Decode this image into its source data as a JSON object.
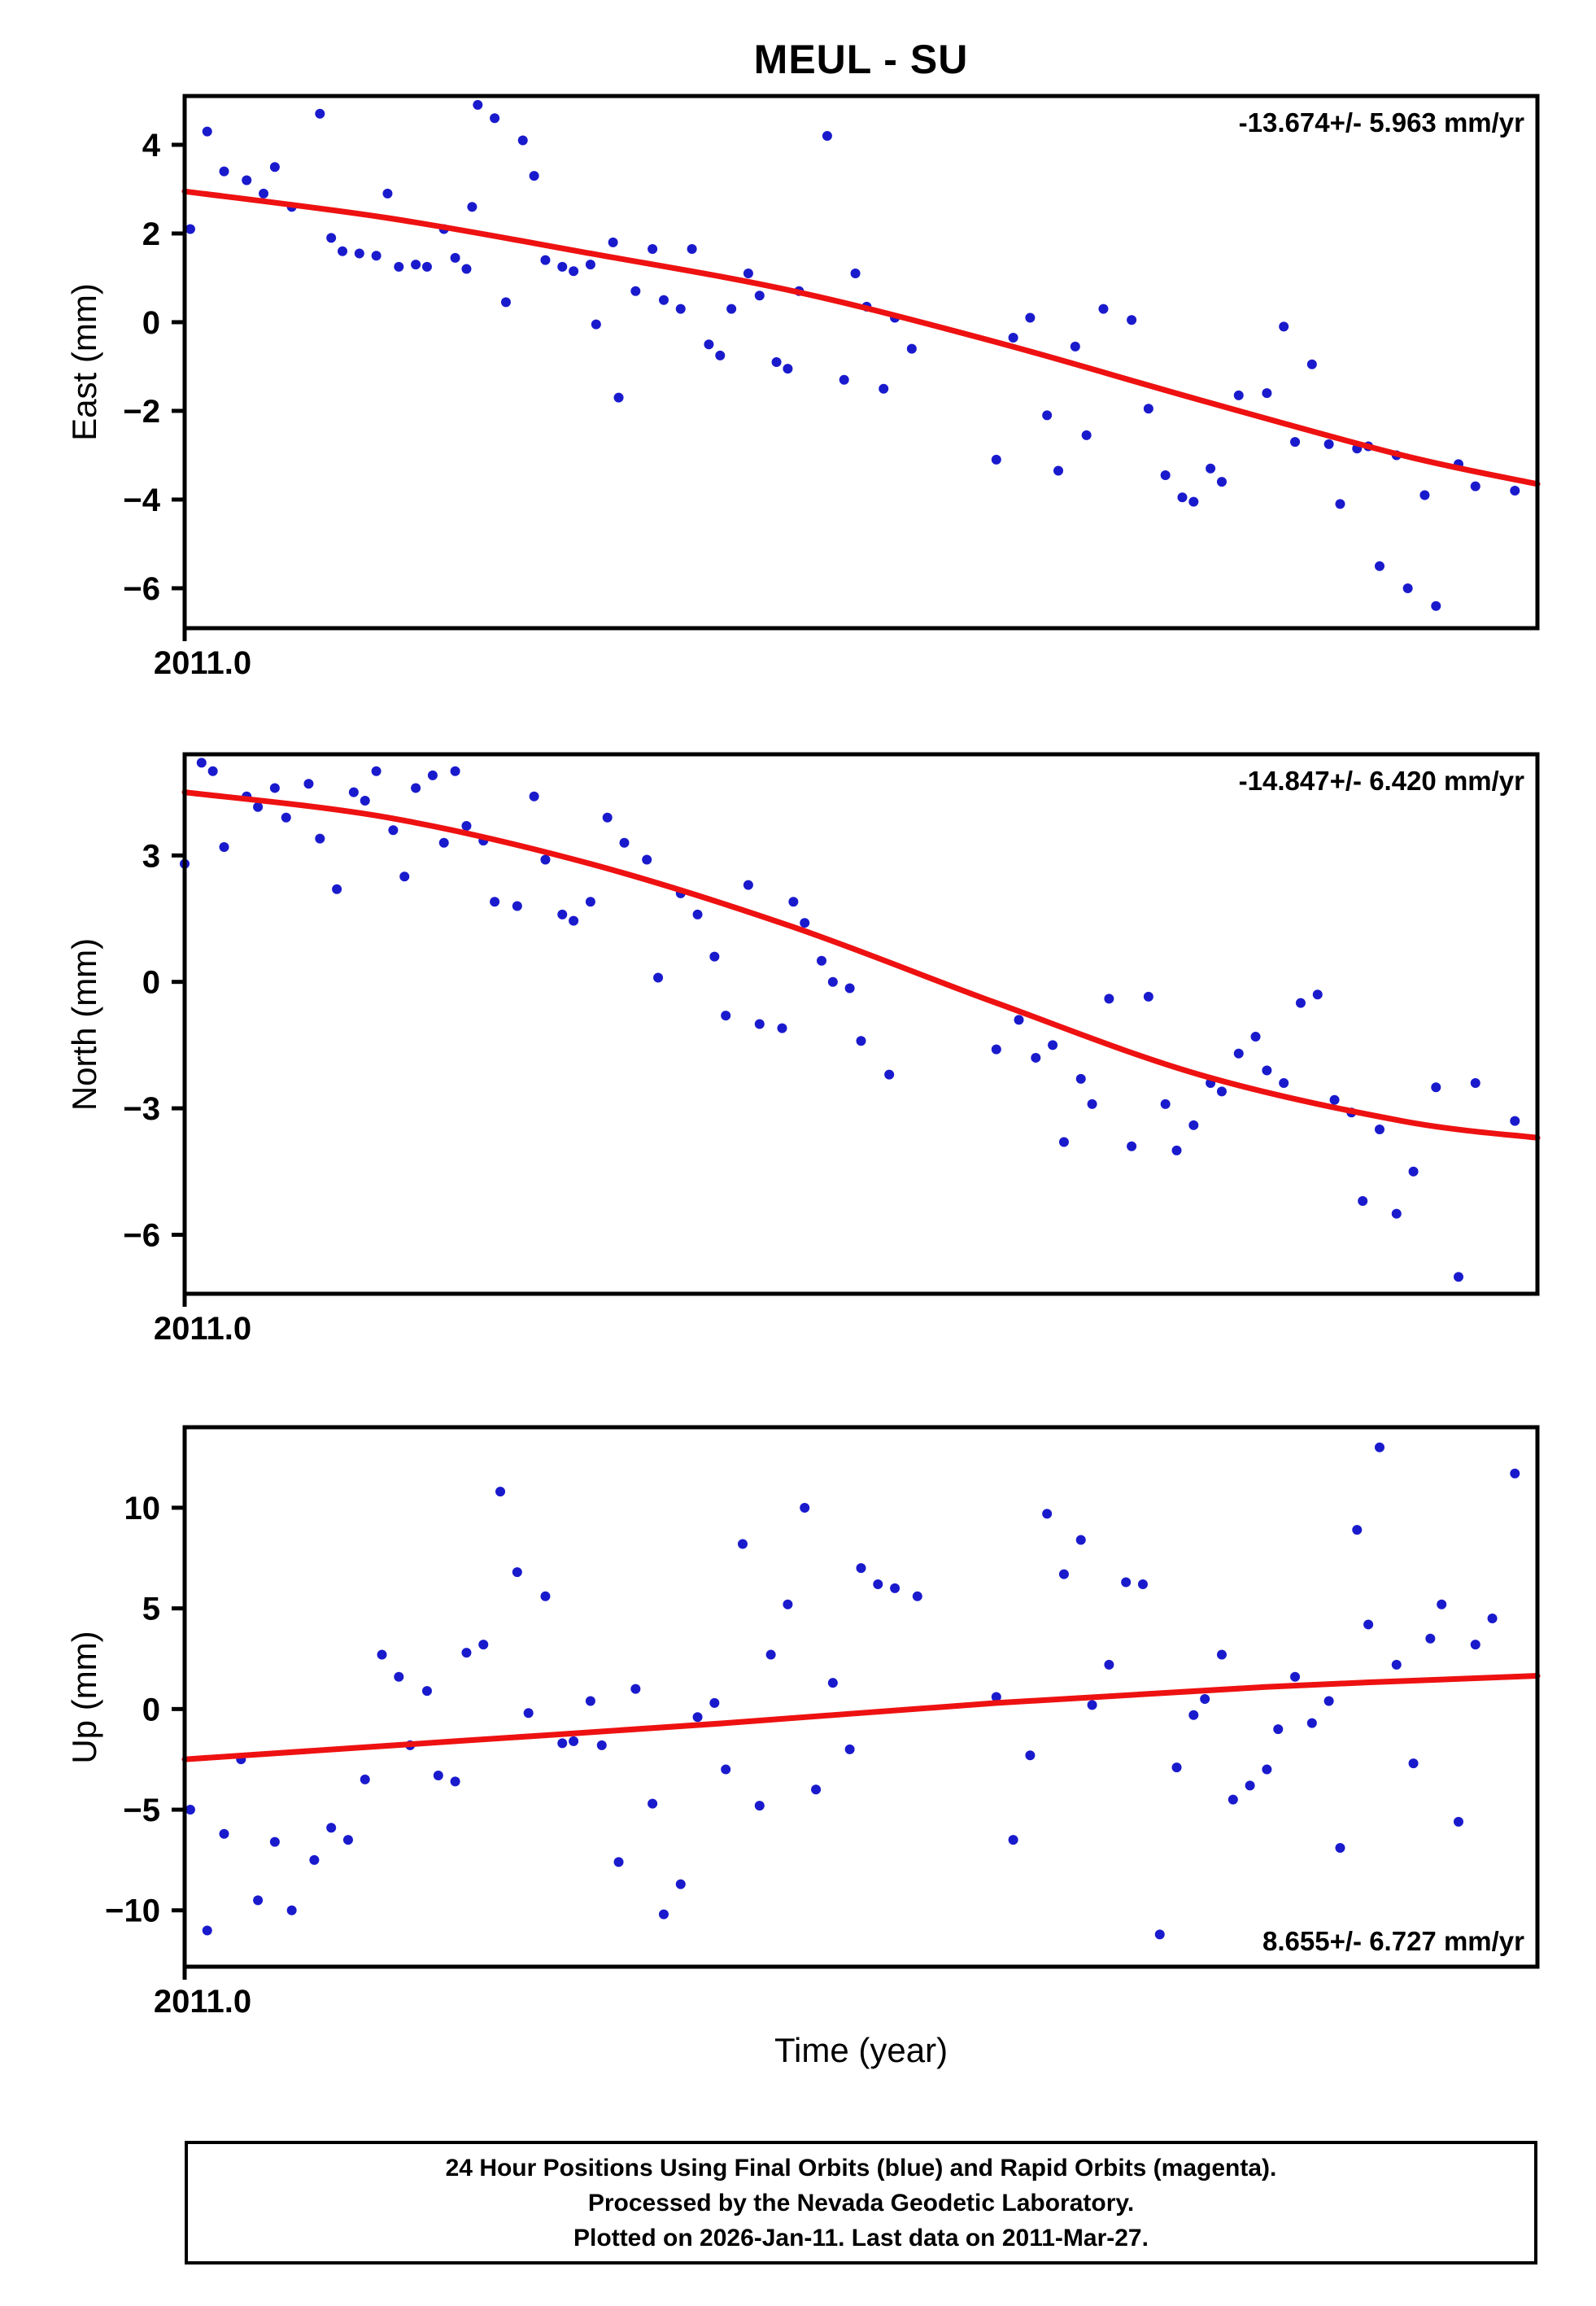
{
  "title": "MEUL - SU",
  "xlabel": "Time (year)",
  "colors": {
    "points": "#1a1acd",
    "trend": "#ee1111",
    "frame": "#000000"
  },
  "footer": {
    "line1": "24 Hour Positions Using Final Orbits (blue) and Rapid Orbits (magenta).",
    "line2": "Processed by the Nevada Geodetic Laboratory.",
    "line3": "Plotted on 2026-Jan-11. Last data on 2011-Mar-27."
  },
  "chart_data": [
    {
      "type": "scatter",
      "name": "East",
      "ylabel": "East (mm)",
      "annotation": "-13.674+/- 5.963 mm/yr",
      "annotation_pos": "top-right",
      "x_start_label": "2011.0",
      "xlim": [
        2011.0,
        2011.24
      ],
      "ylim": [
        -6.9,
        5.1
      ],
      "yticks": [
        4,
        2,
        0,
        -2,
        -4,
        -6
      ],
      "points": [
        [
          2011.001,
          2.1
        ],
        [
          2011.004,
          4.3
        ],
        [
          2011.007,
          3.4
        ],
        [
          2011.011,
          3.2
        ],
        [
          2011.014,
          2.9
        ],
        [
          2011.016,
          3.5
        ],
        [
          2011.019,
          2.6
        ],
        [
          2011.024,
          4.7
        ],
        [
          2011.026,
          1.9
        ],
        [
          2011.028,
          1.6
        ],
        [
          2011.031,
          1.55
        ],
        [
          2011.034,
          1.5
        ],
        [
          2011.036,
          2.9
        ],
        [
          2011.038,
          1.25
        ],
        [
          2011.041,
          1.3
        ],
        [
          2011.043,
          1.25
        ],
        [
          2011.046,
          2.1
        ],
        [
          2011.048,
          1.45
        ],
        [
          2011.05,
          1.2
        ],
        [
          2011.051,
          2.6
        ],
        [
          2011.052,
          4.9
        ],
        [
          2011.055,
          4.6
        ],
        [
          2011.057,
          0.45
        ],
        [
          2011.06,
          4.1
        ],
        [
          2011.062,
          3.3
        ],
        [
          2011.064,
          1.4
        ],
        [
          2011.067,
          1.25
        ],
        [
          2011.069,
          1.15
        ],
        [
          2011.072,
          1.3
        ],
        [
          2011.073,
          -0.05
        ],
        [
          2011.076,
          1.8
        ],
        [
          2011.077,
          -1.7
        ],
        [
          2011.08,
          0.7
        ],
        [
          2011.083,
          1.65
        ],
        [
          2011.085,
          0.5
        ],
        [
          2011.088,
          0.3
        ],
        [
          2011.09,
          1.65
        ],
        [
          2011.093,
          -0.5
        ],
        [
          2011.095,
          -0.75
        ],
        [
          2011.097,
          0.3
        ],
        [
          2011.1,
          1.1
        ],
        [
          2011.102,
          0.6
        ],
        [
          2011.105,
          -0.9
        ],
        [
          2011.107,
          -1.05
        ],
        [
          2011.109,
          0.7
        ],
        [
          2011.114,
          4.2
        ],
        [
          2011.117,
          -1.3
        ],
        [
          2011.119,
          1.1
        ],
        [
          2011.121,
          0.35
        ],
        [
          2011.124,
          -1.5
        ],
        [
          2011.126,
          0.1
        ],
        [
          2011.129,
          -0.6
        ],
        [
          2011.144,
          -3.1
        ],
        [
          2011.147,
          -0.35
        ],
        [
          2011.15,
          0.1
        ],
        [
          2011.153,
          -2.1
        ],
        [
          2011.155,
          -3.35
        ],
        [
          2011.158,
          -0.55
        ],
        [
          2011.16,
          -2.55
        ],
        [
          2011.163,
          0.3
        ],
        [
          2011.168,
          0.05
        ],
        [
          2011.171,
          -1.95
        ],
        [
          2011.174,
          -3.45
        ],
        [
          2011.177,
          -3.95
        ],
        [
          2011.179,
          -4.05
        ],
        [
          2011.182,
          -3.3
        ],
        [
          2011.184,
          -3.6
        ],
        [
          2011.187,
          -1.65
        ],
        [
          2011.192,
          -1.6
        ],
        [
          2011.195,
          -0.1
        ],
        [
          2011.197,
          -2.7
        ],
        [
          2011.2,
          -0.95
        ],
        [
          2011.203,
          -2.75
        ],
        [
          2011.205,
          -4.1
        ],
        [
          2011.208,
          -2.85
        ],
        [
          2011.21,
          -2.8
        ],
        [
          2011.212,
          -5.5
        ],
        [
          2011.215,
          -3.0
        ],
        [
          2011.217,
          -6.0
        ],
        [
          2011.22,
          -3.9
        ],
        [
          2011.222,
          -6.4
        ],
        [
          2011.226,
          -3.2
        ],
        [
          2011.229,
          -3.7
        ],
        [
          2011.236,
          -3.8
        ]
      ],
      "trend": [
        [
          2011.0,
          2.95
        ],
        [
          2011.036,
          2.35
        ],
        [
          2011.072,
          1.55
        ],
        [
          2011.108,
          0.7
        ],
        [
          2011.144,
          -0.45
        ],
        [
          2011.18,
          -1.75
        ],
        [
          2011.216,
          -3.0
        ],
        [
          2011.24,
          -3.65
        ]
      ]
    },
    {
      "type": "scatter",
      "name": "North",
      "ylabel": "North (mm)",
      "annotation": "-14.847+/- 6.420 mm/yr",
      "annotation_pos": "top-right",
      "x_start_label": "2011.0",
      "xlim": [
        2011.0,
        2011.24
      ],
      "ylim": [
        -7.4,
        5.4
      ],
      "yticks": [
        3,
        0,
        -3,
        -6
      ],
      "points": [
        [
          2011.0,
          2.8
        ],
        [
          2011.003,
          5.2
        ],
        [
          2011.005,
          5.0
        ],
        [
          2011.007,
          3.2
        ],
        [
          2011.011,
          4.4
        ],
        [
          2011.013,
          4.15
        ],
        [
          2011.016,
          4.6
        ],
        [
          2011.018,
          3.9
        ],
        [
          2011.022,
          4.7
        ],
        [
          2011.024,
          3.4
        ],
        [
          2011.027,
          2.2
        ],
        [
          2011.03,
          4.5
        ],
        [
          2011.032,
          4.3
        ],
        [
          2011.034,
          5.0
        ],
        [
          2011.037,
          3.6
        ],
        [
          2011.039,
          2.5
        ],
        [
          2011.041,
          4.6
        ],
        [
          2011.044,
          4.9
        ],
        [
          2011.046,
          3.3
        ],
        [
          2011.048,
          5.0
        ],
        [
          2011.05,
          3.7
        ],
        [
          2011.053,
          3.35
        ],
        [
          2011.055,
          1.9
        ],
        [
          2011.059,
          1.8
        ],
        [
          2011.062,
          4.4
        ],
        [
          2011.064,
          2.9
        ],
        [
          2011.067,
          1.6
        ],
        [
          2011.069,
          1.45
        ],
        [
          2011.072,
          1.9
        ],
        [
          2011.075,
          3.9
        ],
        [
          2011.078,
          3.3
        ],
        [
          2011.082,
          2.9
        ],
        [
          2011.084,
          0.1
        ],
        [
          2011.088,
          2.1
        ],
        [
          2011.091,
          1.6
        ],
        [
          2011.094,
          0.6
        ],
        [
          2011.096,
          -0.8
        ],
        [
          2011.1,
          2.3
        ],
        [
          2011.102,
          -1.0
        ],
        [
          2011.106,
          -1.1
        ],
        [
          2011.108,
          1.9
        ],
        [
          2011.11,
          1.4
        ],
        [
          2011.113,
          0.5
        ],
        [
          2011.115,
          0.0
        ],
        [
          2011.118,
          -0.15
        ],
        [
          2011.12,
          -1.4
        ],
        [
          2011.125,
          -2.2
        ],
        [
          2011.144,
          -1.6
        ],
        [
          2011.148,
          -0.9
        ],
        [
          2011.151,
          -1.8
        ],
        [
          2011.154,
          -1.5
        ],
        [
          2011.156,
          -3.8
        ],
        [
          2011.159,
          -2.3
        ],
        [
          2011.161,
          -2.9
        ],
        [
          2011.164,
          -0.4
        ],
        [
          2011.168,
          -3.9
        ],
        [
          2011.171,
          -0.35
        ],
        [
          2011.174,
          -2.9
        ],
        [
          2011.176,
          -4.0
        ],
        [
          2011.179,
          -3.4
        ],
        [
          2011.182,
          -2.4
        ],
        [
          2011.184,
          -2.6
        ],
        [
          2011.187,
          -1.7
        ],
        [
          2011.19,
          -1.3
        ],
        [
          2011.192,
          -2.1
        ],
        [
          2011.195,
          -2.4
        ],
        [
          2011.198,
          -0.5
        ],
        [
          2011.201,
          -0.3
        ],
        [
          2011.204,
          -2.8
        ],
        [
          2011.207,
          -3.1
        ],
        [
          2011.209,
          -5.2
        ],
        [
          2011.212,
          -3.5
        ],
        [
          2011.215,
          -5.5
        ],
        [
          2011.218,
          -4.5
        ],
        [
          2011.222,
          -2.5
        ],
        [
          2011.226,
          -7.0
        ],
        [
          2011.229,
          -2.4
        ],
        [
          2011.236,
          -3.3
        ]
      ],
      "trend": [
        [
          2011.0,
          4.5
        ],
        [
          2011.036,
          3.9
        ],
        [
          2011.072,
          2.8
        ],
        [
          2011.108,
          1.3
        ],
        [
          2011.144,
          -0.5
        ],
        [
          2011.18,
          -2.2
        ],
        [
          2011.216,
          -3.3
        ],
        [
          2011.24,
          -3.7
        ]
      ]
    },
    {
      "type": "scatter",
      "name": "Up",
      "ylabel": "Up (mm)",
      "annotation": "8.655+/- 6.727 mm/yr",
      "annotation_pos": "bottom-right",
      "x_start_label": "2011.0",
      "xlim": [
        2011.0,
        2011.24
      ],
      "ylim": [
        -12.8,
        14.0
      ],
      "yticks": [
        10,
        5,
        0,
        -5,
        -10
      ],
      "points": [
        [
          2011.001,
          -5.0
        ],
        [
          2011.004,
          -11.0
        ],
        [
          2011.007,
          -6.2
        ],
        [
          2011.01,
          -2.5
        ],
        [
          2011.013,
          -9.5
        ],
        [
          2011.016,
          -6.6
        ],
        [
          2011.019,
          -10.0
        ],
        [
          2011.023,
          -7.5
        ],
        [
          2011.026,
          -5.9
        ],
        [
          2011.029,
          -6.5
        ],
        [
          2011.032,
          -3.5
        ],
        [
          2011.035,
          2.7
        ],
        [
          2011.038,
          1.6
        ],
        [
          2011.04,
          -1.8
        ],
        [
          2011.043,
          0.9
        ],
        [
          2011.045,
          -3.3
        ],
        [
          2011.048,
          -3.6
        ],
        [
          2011.05,
          2.8
        ],
        [
          2011.053,
          3.2
        ],
        [
          2011.056,
          10.8
        ],
        [
          2011.059,
          6.8
        ],
        [
          2011.061,
          -0.2
        ],
        [
          2011.064,
          5.6
        ],
        [
          2011.067,
          -1.7
        ],
        [
          2011.069,
          -1.6
        ],
        [
          2011.072,
          0.4
        ],
        [
          2011.074,
          -1.8
        ],
        [
          2011.077,
          -7.6
        ],
        [
          2011.08,
          1.0
        ],
        [
          2011.083,
          -4.7
        ],
        [
          2011.085,
          -10.2
        ],
        [
          2011.088,
          -8.7
        ],
        [
          2011.091,
          -0.4
        ],
        [
          2011.094,
          0.3
        ],
        [
          2011.096,
          -3.0
        ],
        [
          2011.099,
          8.2
        ],
        [
          2011.102,
          -4.8
        ],
        [
          2011.104,
          2.7
        ],
        [
          2011.107,
          5.2
        ],
        [
          2011.11,
          10.0
        ],
        [
          2011.112,
          -4.0
        ],
        [
          2011.115,
          1.3
        ],
        [
          2011.118,
          -2.0
        ],
        [
          2011.12,
          7.0
        ],
        [
          2011.123,
          6.2
        ],
        [
          2011.126,
          6.0
        ],
        [
          2011.13,
          5.6
        ],
        [
          2011.144,
          0.6
        ],
        [
          2011.147,
          -6.5
        ],
        [
          2011.15,
          -2.3
        ],
        [
          2011.153,
          9.7
        ],
        [
          2011.156,
          6.7
        ],
        [
          2011.159,
          8.4
        ],
        [
          2011.161,
          0.2
        ],
        [
          2011.164,
          2.2
        ],
        [
          2011.167,
          6.3
        ],
        [
          2011.17,
          6.2
        ],
        [
          2011.173,
          -11.2
        ],
        [
          2011.176,
          -2.9
        ],
        [
          2011.179,
          -0.3
        ],
        [
          2011.181,
          0.5
        ],
        [
          2011.184,
          2.7
        ],
        [
          2011.186,
          -4.5
        ],
        [
          2011.189,
          -3.8
        ],
        [
          2011.192,
          -3.0
        ],
        [
          2011.194,
          -1.0
        ],
        [
          2011.197,
          1.6
        ],
        [
          2011.2,
          -0.7
        ],
        [
          2011.203,
          0.4
        ],
        [
          2011.205,
          -6.9
        ],
        [
          2011.208,
          8.9
        ],
        [
          2011.21,
          4.2
        ],
        [
          2011.212,
          13.0
        ],
        [
          2011.215,
          2.2
        ],
        [
          2011.218,
          -2.7
        ],
        [
          2011.221,
          3.5
        ],
        [
          2011.223,
          5.2
        ],
        [
          2011.226,
          -5.6
        ],
        [
          2011.229,
          3.2
        ],
        [
          2011.232,
          4.5
        ],
        [
          2011.236,
          11.7
        ]
      ],
      "trend": [
        [
          2011.0,
          -2.5
        ],
        [
          2011.048,
          -1.6
        ],
        [
          2011.096,
          -0.7
        ],
        [
          2011.144,
          0.3
        ],
        [
          2011.192,
          1.1
        ],
        [
          2011.24,
          1.65
        ]
      ]
    }
  ]
}
